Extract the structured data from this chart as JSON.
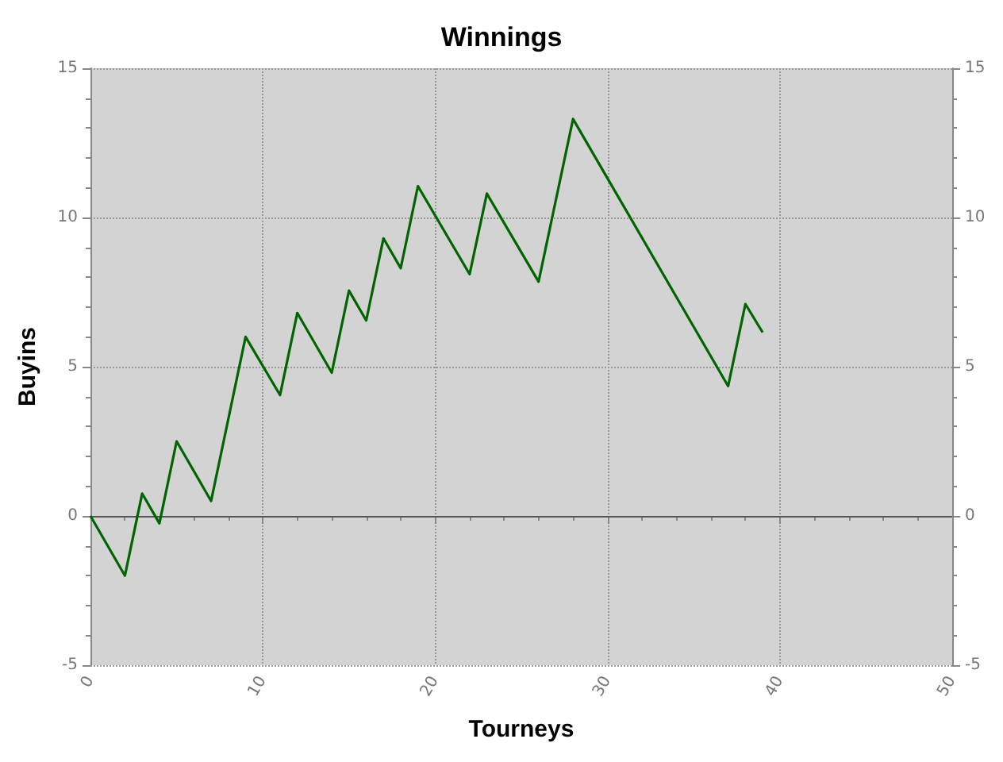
{
  "chart_data": {
    "type": "line",
    "title": "Winnings",
    "xlabel": "Tourneys",
    "ylabel": "Buyins",
    "x": [
      0,
      2,
      3,
      4,
      5,
      7,
      9,
      11,
      12,
      14,
      15,
      16,
      17,
      18,
      19,
      22,
      23,
      26,
      28,
      37,
      38,
      39
    ],
    "series": [
      {
        "color": "#006400",
        "values": [
          0,
          -2,
          0.75,
          -0.25,
          2.5,
          0.5,
          6,
          4.05,
          6.8,
          4.8,
          7.55,
          6.55,
          9.3,
          8.3,
          11.05,
          8.1,
          10.8,
          7.85,
          13.3,
          4.35,
          7.1,
          6.15
        ]
      }
    ],
    "xlim": [
      0,
      50
    ],
    "xticks": [
      0,
      10,
      20,
      30,
      40,
      50
    ],
    "ylim": [
      -5,
      15
    ],
    "yticks": [
      -5,
      0,
      5,
      10,
      15
    ],
    "y2lim": [
      -5,
      15
    ],
    "y2ticks": [
      -5,
      0,
      5,
      10,
      15
    ],
    "ref_lines": [
      {
        "axis": "y",
        "value": 0,
        "color": "#555555",
        "line_style": "solid"
      }
    ],
    "grid": true,
    "marker": "none",
    "line_style": "solid"
  }
}
